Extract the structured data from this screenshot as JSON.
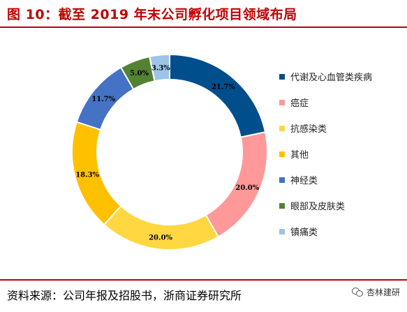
{
  "figure": {
    "title": "图 10：截至 2019 年末公司孵化项目领域布局",
    "source": "资料来源：公司年报及招股书，浙商证券研究所",
    "watermark": "杏林建研"
  },
  "chart_data": {
    "type": "pie",
    "donut": true,
    "title": "",
    "start_angle": "12 o'clock",
    "direction": "clockwise",
    "legend_position": "right",
    "slices": [
      {
        "label": "代谢及心血管类疾病",
        "value": 21.7,
        "value_label": "21.7%",
        "color": "#004e8c",
        "label_color": "#000000"
      },
      {
        "label": "癌症",
        "value": 20.0,
        "value_label": "20.0%",
        "color": "#ff9999",
        "label_color": "#000000"
      },
      {
        "label": "抗感染类",
        "value": 20.0,
        "value_label": "20.0%",
        "color": "#ffd740",
        "label_color": "#000000"
      },
      {
        "label": "其他",
        "value": 18.3,
        "value_label": "18.3%",
        "color": "#ffc000",
        "label_color": "#000000"
      },
      {
        "label": "神经类",
        "value": 11.7,
        "value_label": "11.7%",
        "color": "#4472c4",
        "label_color": "#000000"
      },
      {
        "label": "眼部及皮肤类",
        "value": 5.0,
        "value_label": "5.0%",
        "color": "#548235",
        "label_color": "#000000"
      },
      {
        "label": "镇痛类",
        "value": 3.3,
        "value_label": "3.3%",
        "color": "#9dc3e6",
        "label_color": "#000000"
      }
    ]
  }
}
